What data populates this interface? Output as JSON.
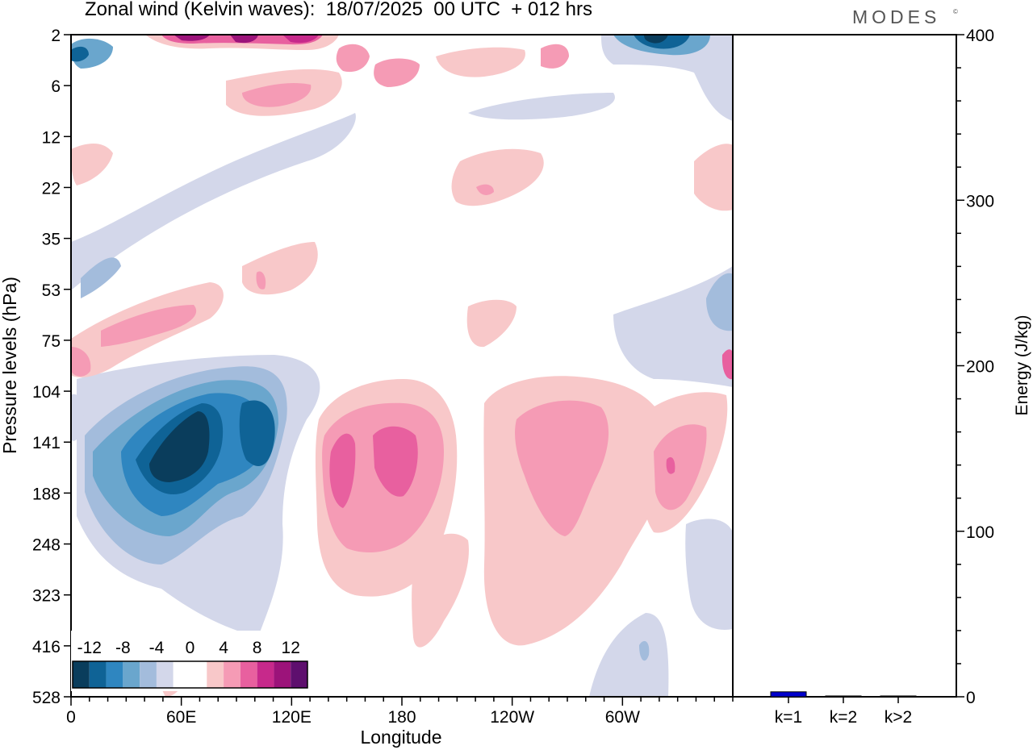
{
  "header": {
    "title": "Zonal wind (Kelvin waves):  18/07/2025  00 UTC  + 012 hrs",
    "brand": "MODES",
    "brand_mark": "©"
  },
  "chart_data": [
    {
      "type": "heatmap",
      "title": "Zonal wind (Kelvin waves):  18/07/2025  00 UTC  + 012 hrs",
      "xlabel": "Longitude",
      "ylabel": "Pressure levels (hPa)",
      "x_ticks": [
        "0",
        "60E",
        "120E",
        "180",
        "120W",
        "60W"
      ],
      "x_tick_degrees": [
        0,
        60,
        120,
        180,
        240,
        300
      ],
      "xlim": [
        0,
        360
      ],
      "y_ticks": [
        "2",
        "6",
        "12",
        "22",
        "35",
        "53",
        "75",
        "104",
        "141",
        "188",
        "248",
        "323",
        "416",
        "528"
      ],
      "y_scale": "categorical pressure levels, top to bottom",
      "colorbar": {
        "labels": [
          "-12",
          "-8",
          "-4",
          "0",
          "4",
          "8",
          "12"
        ],
        "levels": [
          -14,
          -12,
          -10,
          -8,
          -6,
          -4,
          -2,
          2,
          4,
          6,
          8,
          10,
          12,
          14
        ],
        "colors": [
          "#0a3d5c",
          "#0f6396",
          "#2f86c0",
          "#6aa6cd",
          "#a3bcdc",
          "#d3d7ea",
          "#ffffff",
          "#ffffff",
          "#f8c8c9",
          "#f59bb5",
          "#e8609f",
          "#c7298b",
          "#9c137a",
          "#5e0f6e"
        ]
      },
      "features": [
        {
          "name": "negative anomaly core",
          "lon_range": [
            20,
            120
          ],
          "levels": [
            "104",
            "248"
          ],
          "min_value": -14
        },
        {
          "name": "positive anomaly",
          "lon_range": [
            135,
            205
          ],
          "levels": [
            "104",
            "323"
          ],
          "max_value": 8
        },
        {
          "name": "positive anomaly",
          "lon_range": [
            225,
            290
          ],
          "levels": [
            "104",
            "416"
          ],
          "max_value": 6
        },
        {
          "name": "positive anomaly",
          "lon_range": [
            295,
            350
          ],
          "levels": [
            "104",
            "248"
          ],
          "max_value": 8
        },
        {
          "name": "upper negative anomaly",
          "lon_range": [
            290,
            330
          ],
          "levels": [
            "2",
            "6"
          ],
          "min_value": -12
        },
        {
          "name": "upper positive anomaly",
          "lon_range": [
            60,
            140
          ],
          "levels": [
            "2",
            "12"
          ],
          "max_value": 12
        }
      ]
    },
    {
      "type": "bar",
      "ylabel": "Energy (J/kg)",
      "categories": [
        "k=1",
        "k=2",
        "k>2"
      ],
      "values": [
        3,
        0.5,
        0.5
      ],
      "ylim": [
        0,
        400
      ],
      "y_ticks": [
        "0",
        "100",
        "200",
        "300",
        "400"
      ],
      "colors": [
        "#0000cc",
        "#2a2a2a",
        "#2a2a2a"
      ]
    }
  ]
}
